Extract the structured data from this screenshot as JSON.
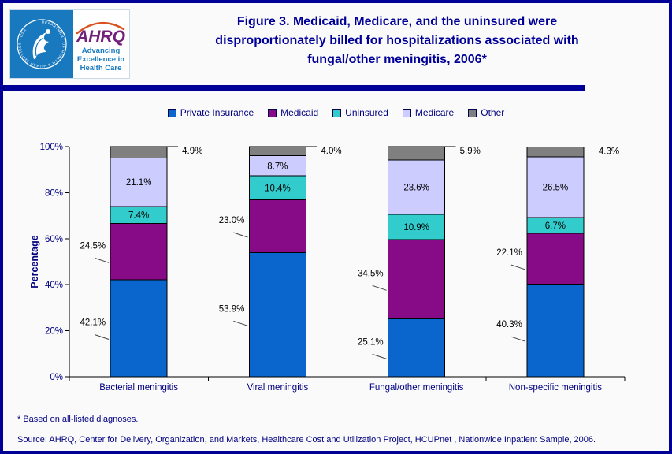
{
  "colors": {
    "border_navy": "#000099",
    "title_navy": "#000099",
    "text_navy": "#000080",
    "data_label_black": "#000000",
    "logo_blue": "#1879BF",
    "logo_purple": "#72217B",
    "logo_arc_orange": "#D9531E"
  },
  "header": {
    "title": "Figure 3. Medicaid, Medicare, and the uninsured were disproportionately billed for hospitalizations associated with fungal/other meningitis, 2006*",
    "title_lines": [
      "Figure 3. Medicaid, Medicare, and the uninsured were",
      "disproportionately billed for hospitalizations associated with",
      "fungal/other meningitis, 2006*"
    ],
    "logo": {
      "acronym": "AHRQ",
      "tagline_lines": [
        "Advancing",
        "Excellence in",
        "Health Care"
      ],
      "seal_text": "DEPARTMENT OF HEALTH & HUMAN SERVICES • USA"
    }
  },
  "chart_data": {
    "type": "bar",
    "stacked": true,
    "title": "",
    "xlabel": "",
    "ylabel": "Percentage",
    "ylim": [
      0,
      100
    ],
    "y_tick_labels": [
      "0%",
      "20%",
      "40%",
      "60%",
      "80%",
      "100%"
    ],
    "grid": false,
    "legend_position": "top",
    "categories": [
      "Bacterial meningitis",
      "Viral meningitis",
      "Fungal/other meningitis",
      "Non-specific meningitis"
    ],
    "series": [
      {
        "name": "Private Insurance",
        "color": "#0A66CC",
        "label_placement": "outside-left",
        "values": [
          42.1,
          53.9,
          25.1,
          40.3
        ]
      },
      {
        "name": "Medicaid",
        "color": "#870A86",
        "label_placement": "outside-left",
        "values": [
          24.5,
          23.0,
          34.5,
          22.1
        ]
      },
      {
        "name": "Uninsured",
        "color": "#33CCCC",
        "label_placement": "inside",
        "values": [
          7.4,
          10.4,
          10.9,
          6.7
        ]
      },
      {
        "name": "Medicare",
        "color": "#CCCCFF",
        "label_placement": "inside",
        "values": [
          21.1,
          8.7,
          23.6,
          26.5
        ]
      },
      {
        "name": "Other",
        "color": "#808080",
        "label_placement": "callout-top-right",
        "values": [
          4.9,
          4.0,
          5.9,
          4.3
        ]
      }
    ]
  },
  "footnotes": {
    "asterisk": "* Based on all-listed diagnoses.",
    "source": "Source: AHRQ, Center for Delivery, Organization, and Markets, Healthcare Cost and Utilization Project, HCUPnet , Nationwide Inpatient Sample, 2006."
  }
}
